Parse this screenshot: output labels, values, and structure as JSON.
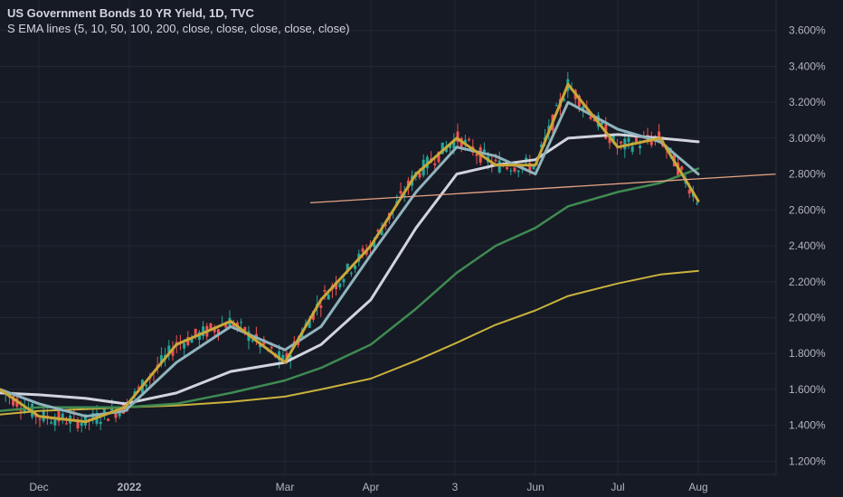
{
  "legend": {
    "title": "US Government Bonds 10 YR Yield, 1D, TVC",
    "indicator": "S EMA lines (5, 10, 50, 100, 200, close, close, close, close, close)"
  },
  "colors": {
    "background": "#161a25",
    "grid": "#232733",
    "up": "#26a69a",
    "down": "#ef5350",
    "ema5": "#c8a83a",
    "ema10": "#8fb3bd",
    "ema50": "#d1d4dc",
    "ema100": "#3f8a52",
    "ema200": "#c9b23c",
    "trendline": "#e8a485"
  },
  "chart_data": {
    "type": "line",
    "title": "US Government Bonds 10 YR Yield, 1D, TVC",
    "x_tick_labels": [
      "Dec",
      "2022",
      "Mar",
      "Apr",
      "3",
      "Jun",
      "Jul",
      "Aug"
    ],
    "y_tick_labels": [
      "1.200%",
      "1.400%",
      "1.600%",
      "1.800%",
      "2.000%",
      "2.200%",
      "2.400%",
      "2.600%",
      "2.800%",
      "3.000%",
      "3.200%",
      "3.400%",
      "3.600%"
    ],
    "ylim": [
      1.1,
      3.7
    ],
    "y_unit": "%",
    "grid": true,
    "x": [
      "Nov 16",
      "Dec 1",
      "Dec 15",
      "Jan 3",
      "Jan 20",
      "Feb 10",
      "Mar 1",
      "Mar 15",
      "Apr 1",
      "Apr 15",
      "May 3",
      "May 18",
      "Jun 1",
      "Jun 14",
      "Jun 30",
      "Jul 15",
      "Jul 29"
    ],
    "series": [
      {
        "values": [
          1.6,
          1.45,
          1.42,
          1.5,
          1.85,
          1.98,
          1.75,
          2.1,
          2.4,
          2.8,
          3.0,
          2.85,
          2.85,
          3.3,
          2.95,
          3.0,
          2.65
        ]
      },
      {
        "values": [
          1.6,
          1.52,
          1.45,
          1.48,
          1.75,
          1.95,
          1.82,
          1.95,
          2.35,
          2.7,
          2.95,
          2.9,
          2.8,
          3.2,
          3.05,
          2.98,
          2.8
        ]
      },
      {
        "values": [
          1.58,
          1.57,
          1.55,
          1.52,
          1.58,
          1.7,
          1.75,
          1.85,
          2.1,
          2.5,
          2.8,
          2.85,
          2.88,
          3.0,
          3.02,
          3.0,
          2.98
        ]
      },
      {
        "values": [
          1.48,
          1.5,
          1.5,
          1.5,
          1.52,
          1.58,
          1.65,
          1.72,
          1.85,
          2.05,
          2.25,
          2.4,
          2.5,
          2.62,
          2.7,
          2.75,
          2.83
        ]
      },
      {
        "values": [
          1.46,
          1.48,
          1.49,
          1.5,
          1.51,
          1.53,
          1.56,
          1.6,
          1.66,
          1.76,
          1.86,
          1.96,
          2.04,
          2.12,
          2.19,
          2.24,
          2.26
        ]
      }
    ],
    "trendline": {
      "x": [
        "Mar 8",
        "Aug 31"
      ],
      "values": [
        2.64,
        2.8
      ]
    }
  }
}
